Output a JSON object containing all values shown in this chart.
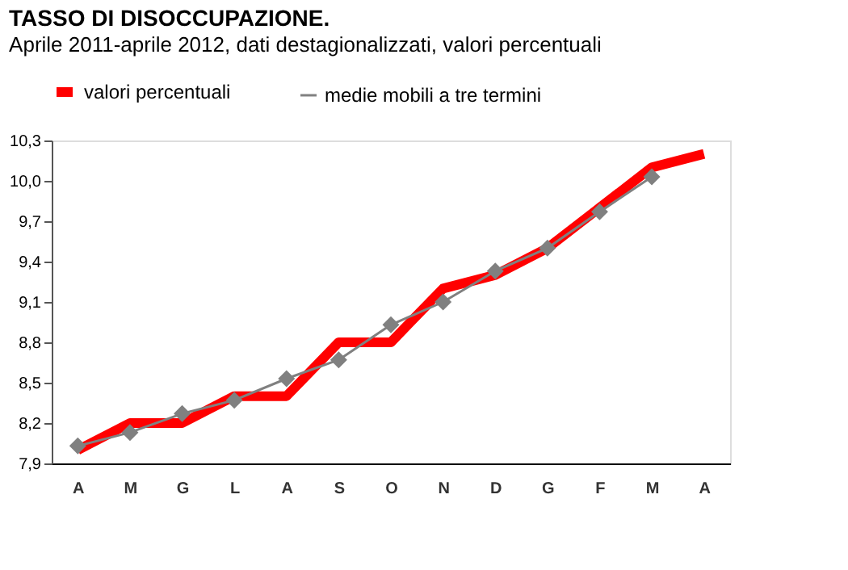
{
  "chart_data": {
    "type": "line",
    "title": "TASSO DI DISOCCUPAZIONE.",
    "subtitle": "Aprile 2011-aprile 2012, dati destagionalizzati, valori percentuali",
    "categories": [
      "A",
      "M",
      "G",
      "L",
      "A",
      "S",
      "O",
      "N",
      "D",
      "G",
      "F",
      "M",
      "A"
    ],
    "series": [
      {
        "name": "valori percentuali",
        "color": "#ff0000",
        "marker": "none",
        "values": [
          8.0,
          8.2,
          8.2,
          8.4,
          8.4,
          8.8,
          8.8,
          9.2,
          9.3,
          9.5,
          9.8,
          10.1,
          10.2
        ]
      },
      {
        "name": "medie mobili a tre termini",
        "color": "#808080",
        "marker": "diamond",
        "values": [
          8.03,
          8.13,
          8.27,
          8.37,
          8.53,
          8.67,
          8.93,
          9.1,
          9.33,
          9.5,
          9.77,
          10.03,
          null
        ]
      }
    ],
    "ylim": [
      7.9,
      10.3
    ],
    "yticks": [
      {
        "value": 7.9,
        "label": "7,9"
      },
      {
        "value": 8.2,
        "label": "8,2"
      },
      {
        "value": 8.5,
        "label": "8,5"
      },
      {
        "value": 8.8,
        "label": "8,8"
      },
      {
        "value": 9.1,
        "label": "9,1"
      },
      {
        "value": 9.4,
        "label": "9,4"
      },
      {
        "value": 9.7,
        "label": "9,7"
      },
      {
        "value": 10.0,
        "label": "10,0"
      },
      {
        "value": 10.3,
        "label": "10,3"
      }
    ],
    "grid": false,
    "legend": "top",
    "line_style": "solid"
  }
}
